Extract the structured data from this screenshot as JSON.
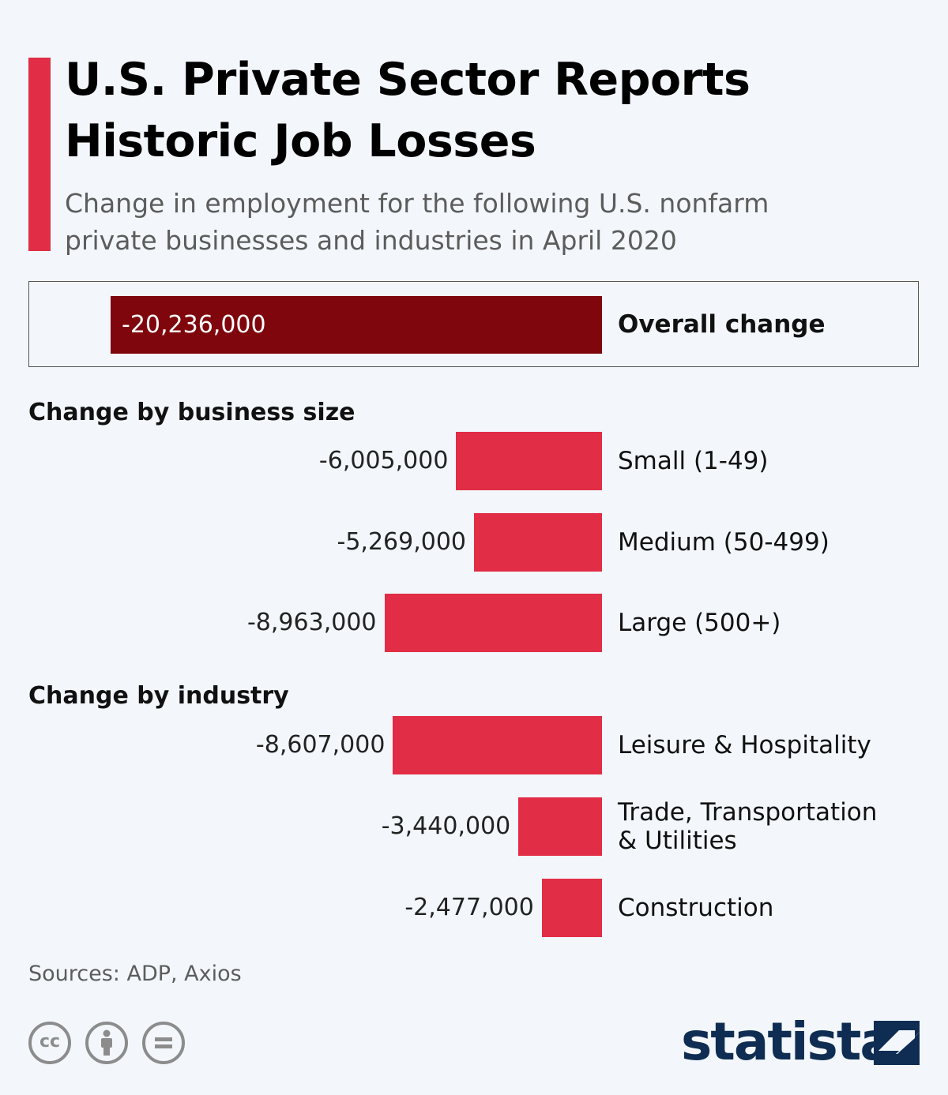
{
  "header": {
    "title_line1": "U.S. Private Sector Reports",
    "title_line2": "Historic Job Losses",
    "subtitle_line1": "Change in employment for the following U.S. nonfarm",
    "subtitle_line2": "private businesses and industries in April 2020"
  },
  "colors": {
    "overall_bar": "#7e060c",
    "bar": "#e12d45",
    "accent": "#e12d45",
    "logo": "#0f2d52"
  },
  "chart_data": {
    "type": "bar",
    "orientation": "horizontal",
    "overall": {
      "label": "Overall change",
      "value": -20236000,
      "value_label": "-20,236,000"
    },
    "groups": [
      {
        "heading": "Change by business size",
        "items": [
          {
            "label": "Small (1-49)",
            "value": -6005000,
            "value_label": "-6,005,000"
          },
          {
            "label": "Medium (50-499)",
            "value": -5269000,
            "value_label": "-5,269,000"
          },
          {
            "label": "Large (500+)",
            "value": -8963000,
            "value_label": "-8,963,000"
          }
        ]
      },
      {
        "heading": "Change by industry",
        "items": [
          {
            "label": "Leisure & Hospitality",
            "value": -8607000,
            "value_label": "-8,607,000"
          },
          {
            "label_lines": [
              "Trade, Transportation",
              "& Utilities"
            ],
            "value": -3440000,
            "value_label": "-3,440,000"
          },
          {
            "label": "Construction",
            "value": -2477000,
            "value_label": "-2,477,000"
          }
        ]
      }
    ]
  },
  "footer": {
    "sources": "Sources: ADP, Axios",
    "license_icons": [
      "cc-icon",
      "attribution-icon",
      "no-derivatives-icon"
    ],
    "logo_text": "statista"
  }
}
